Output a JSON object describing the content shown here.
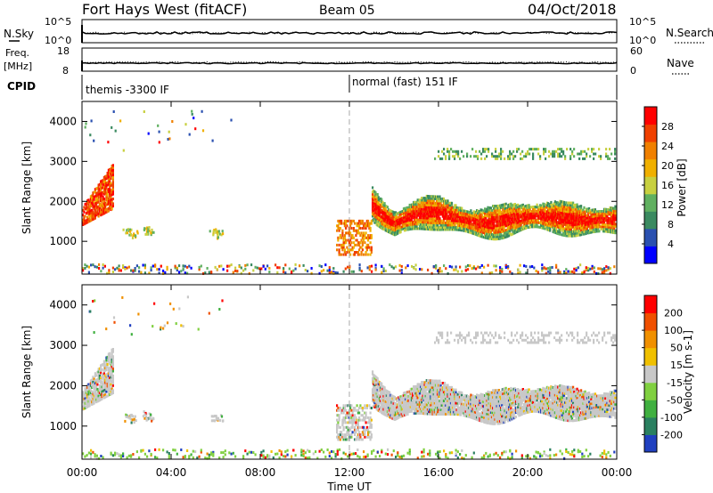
{
  "header": {
    "title_left": "Fort Hays West (fitACF)",
    "title_center": "Beam 05",
    "title_right": "04/Oct/2018"
  },
  "noise_panel": {
    "left_label": "N.Sky",
    "right_label": "N.Search",
    "left_ticks": [
      "10^5",
      "10^0"
    ],
    "right_ticks": [
      "10^5",
      "10^0"
    ]
  },
  "freq_panel": {
    "left_label_line1": "Freq.",
    "left_label_line2": "[MHz]",
    "right_label": "Nave",
    "left_ticks": [
      "18",
      "8"
    ],
    "right_ticks": [
      "60",
      "0"
    ]
  },
  "cpid": {
    "label": "CPID",
    "segments": [
      "themis -3300 IF",
      "normal (fast) 151 IF"
    ]
  },
  "xaxis": {
    "ticks": [
      "00:00",
      "04:00",
      "08:00",
      "12:00",
      "16:00",
      "20:00",
      "00:00"
    ],
    "label": "Time UT"
  },
  "power_panel": {
    "ylabel": "Slant Range [km]",
    "yticks": [
      "4000",
      "3000",
      "2000",
      "1000"
    ],
    "colorbar_label": "Power [dB]",
    "colorbar_ticks": [
      "28",
      "24",
      "20",
      "16",
      "12",
      "8",
      "4"
    ],
    "colors": [
      "#0000ff",
      "#2a50b0",
      "#3a8a60",
      "#60b060",
      "#c8d040",
      "#f0b000",
      "#f08000",
      "#f04000",
      "#ff0000"
    ]
  },
  "velocity_panel": {
    "ylabel": "Slant Range [km]",
    "yticks": [
      "4000",
      "3000",
      "2000",
      "1000"
    ],
    "colorbar_label": "Velocity [m s-1]",
    "colorbar_ticks": [
      "200",
      "100",
      "50",
      "15",
      "-15",
      "-50",
      "-100",
      "-200"
    ],
    "colors": [
      "#2040c0",
      "#2a8060",
      "#40b040",
      "#80d040",
      "#c8c8c8",
      "#f0c000",
      "#f09000",
      "#f05000",
      "#ff0000"
    ]
  },
  "chart_data": {
    "type": "heatmap",
    "title": "Fort Hays West (fitACF)",
    "xlabel": "Time UT",
    "ylabel": "Slant Range [km]",
    "xlim": [
      0,
      24
    ],
    "ylim": [
      180,
      4500
    ],
    "x_unit": "hours UT",
    "features": [
      {
        "name": "early ground band",
        "t_start": 0.0,
        "t_end": 1.4,
        "r_start": 1500,
        "r_end": 3000
      },
      {
        "name": "main echo band",
        "t_start": 13.0,
        "t_end": 24.0,
        "r_center": 1600
      },
      {
        "name": "upper scatter",
        "t_start": 15.8,
        "t_end": 24.0,
        "r_center": 3200
      },
      {
        "name": "near-range clutter",
        "t_start": 0.0,
        "t_end": 24.0,
        "r_center": 250
      }
    ]
  }
}
